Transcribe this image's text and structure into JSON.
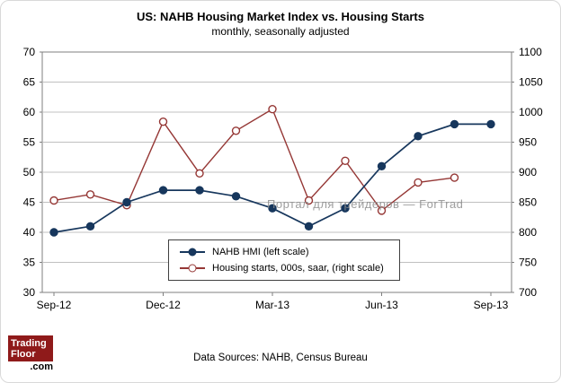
{
  "title": "US: NAHB Housing Market Index  vs.  Housing Starts",
  "subtitle": "monthly, seasonally adjusted",
  "watermark": "Портал для трейдеров — ForTrad",
  "footer": {
    "sources": "Data Sources: NAHB, Census Bureau"
  },
  "logo": {
    "line1": "Trading",
    "line2": "Floor",
    "line3": ".com"
  },
  "legend": [
    {
      "label": "NAHB HMI (left scale)"
    },
    {
      "label": "Housing starts, 000s, saar, (right scale)"
    }
  ],
  "colors": {
    "hmi": "#17375D",
    "starts": "#953735",
    "grid": "#c0c0c0",
    "plot_border": "#7f7f7f",
    "text": "#000000"
  },
  "chart_data": {
    "type": "line",
    "title": "US: NAHB Housing Market Index vs. Housing Starts",
    "subtitle": "monthly, seasonally adjusted",
    "grid": true,
    "legend_position": "inside-bottom-center",
    "months": [
      "Sep-12",
      "Oct-12",
      "Nov-12",
      "Dec-12",
      "Jan-13",
      "Feb-13",
      "Mar-13",
      "Apr-13",
      "May-13",
      "Jun-13",
      "Jul-13",
      "Aug-13",
      "Sep-13"
    ],
    "x_tick_labels": [
      "Sep-12",
      "Dec-12",
      "Mar-13",
      "Jun-13",
      "Sep-13"
    ],
    "x_tick_months": [
      0,
      3,
      6,
      9,
      12
    ],
    "left_axis": {
      "min": 30,
      "max": 70,
      "step": 5
    },
    "right_axis": {
      "min": 700,
      "max": 1100,
      "step": 50
    },
    "series": [
      {
        "name": "NAHB HMI (left scale)",
        "axis": "left",
        "marker": "filled",
        "color": "#17375D",
        "values": [
          40,
          41,
          45,
          47,
          47,
          46,
          44,
          41,
          44,
          51,
          56,
          58,
          58
        ]
      },
      {
        "name": "Housing starts, 000s, saar, (right scale)",
        "axis": "right",
        "marker": "open",
        "color": "#953735",
        "values": [
          853,
          863,
          845,
          984,
          898,
          969,
          1005,
          853,
          919,
          836,
          883,
          891
        ]
      }
    ]
  }
}
